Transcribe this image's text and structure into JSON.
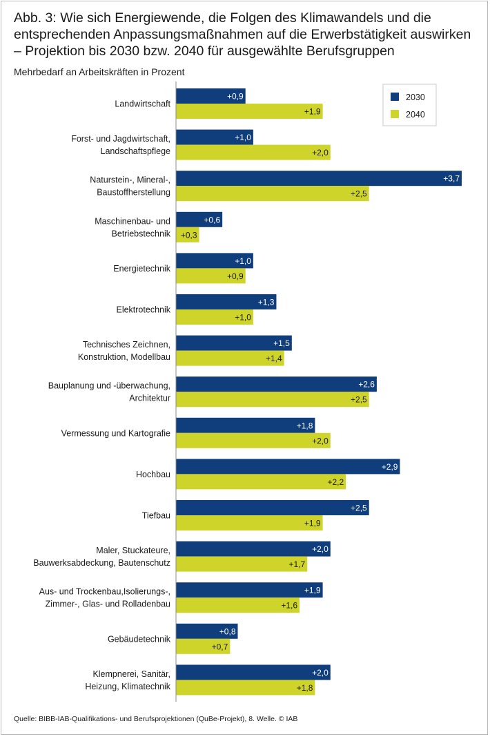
{
  "header": {
    "title_line1": "Abb. 3: Wie sich Energiewende, die Folgen des Klimawandels und die",
    "title_line2": "entsprechenden Anpassungsmaßnahmen auf die Erwerbstätigkeit auswirken",
    "title_line3": "– Projektion bis 2030 bzw. 2040 für ausgewählte Berufsgruppen",
    "subtitle": "Mehrbedarf an Arbeitskräften in Prozent"
  },
  "footer": {
    "source": "Quelle: BIBB-IAB-Qualifikations- und Berufsprojektionen (QuBe-Projekt), 8. Welle.  © IAB"
  },
  "colors": {
    "series_2030": "#103d7b",
    "series_2040": "#cfd42b",
    "axis": "#8c8c8c"
  },
  "chart_data": {
    "type": "bar",
    "orientation": "horizontal",
    "title": "Abb. 3: Wie sich Energiewende, die Folgen des Klimawandels und die entsprechenden Anpassungsmaßnahmen auf die Erwerbstätigkeit auswirken – Projektion bis 2030 bzw. 2040 für ausgewählte Berufsgruppen",
    "xlabel": "Mehrbedarf an Arbeitskräften in Prozent",
    "ylabel": "",
    "xlim": [
      0,
      3.7
    ],
    "grid": false,
    "legend": "top-right",
    "categories": [
      [
        "Landwirtschaft"
      ],
      [
        "Forst- und Jagdwirtschaft,",
        "Landschaftspflege"
      ],
      [
        "Naturstein-, Mineral-,",
        "Baustoffherstellung"
      ],
      [
        "Maschinenbau- und",
        "Betriebstechnik"
      ],
      [
        "Energietechnik"
      ],
      [
        "Elektrotechnik"
      ],
      [
        "Technisches Zeichnen,",
        "Konstruktion, Modellbau"
      ],
      [
        "Bauplanung und -überwachung,",
        "Architektur"
      ],
      [
        "Vermessung und Kartografie"
      ],
      [
        "Hochbau"
      ],
      [
        "Tiefbau"
      ],
      [
        "Maler, Stuckateure,",
        "Bauwerksabdeckung, Bautenschutz"
      ],
      [
        "Aus- und Trockenbau,Isolierungs-,",
        "Zimmer-, Glas- und Rolladenbau"
      ],
      [
        "Gebäudetechnik"
      ],
      [
        "Klempnerei, Sanitär,",
        "Heizung, Klimatechnik"
      ]
    ],
    "series": [
      {
        "name": "2030",
        "values": [
          0.9,
          1.0,
          3.7,
          0.6,
          1.0,
          1.3,
          1.5,
          2.6,
          1.8,
          2.9,
          2.5,
          2.0,
          1.9,
          0.8,
          2.0
        ],
        "labels": [
          "+0,9",
          "+1,0",
          "+3,7",
          "+0,6",
          "+1,0",
          "+1,3",
          "+1,5",
          "+2,6",
          "+1,8",
          "+2,9",
          "+2,5",
          "+2,0",
          "+1,9",
          "+0,8",
          "+2,0"
        ]
      },
      {
        "name": "2040",
        "values": [
          1.9,
          2.0,
          2.5,
          0.3,
          0.9,
          1.0,
          1.4,
          2.5,
          2.0,
          2.2,
          1.9,
          1.7,
          1.6,
          0.7,
          1.8
        ],
        "labels": [
          "+1,9",
          "+2,0",
          "+2,5",
          "+0,3",
          "+0,9",
          "+1,0",
          "+1,4",
          "+2,5",
          "+2,0",
          "+2,2",
          "+1,9",
          "+1,7",
          "+1,6",
          "+0,7",
          "+1,8"
        ]
      }
    ]
  }
}
